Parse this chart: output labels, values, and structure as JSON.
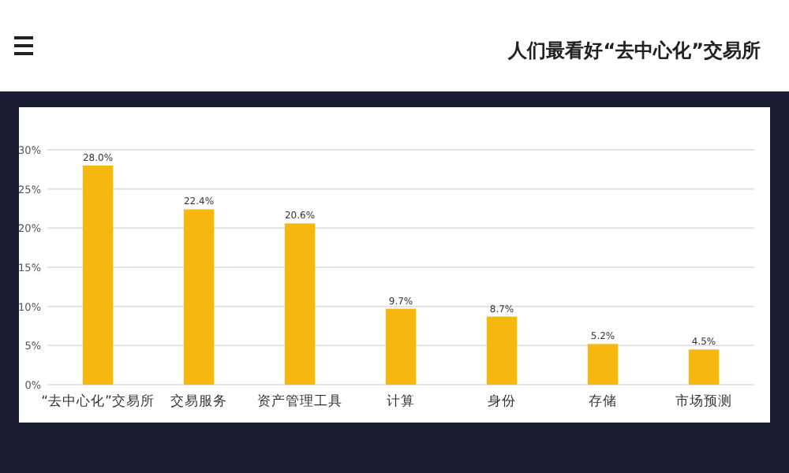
{
  "chart_data": {
    "type": "bar",
    "title": "人们最看好“去中心化”交易所",
    "categories": [
      "“去中心化”交易所",
      "交易服务",
      "资产管理工具",
      "计算",
      "身份",
      "存储",
      "市场预测"
    ],
    "values": [
      28.0,
      22.4,
      20.6,
      9.7,
      8.7,
      5.2,
      4.5
    ],
    "value_labels": [
      "28.0%",
      "22.4%",
      "20.6%",
      "9.7%",
      "8.7%",
      "5.2%",
      "4.5%"
    ],
    "color": "#f6b80f",
    "ylim": [
      0,
      30
    ],
    "yticks": [
      {
        "value": 0,
        "label": "0%"
      },
      {
        "value": 5,
        "label": "5%"
      },
      {
        "value": 10,
        "label": "10%"
      },
      {
        "value": 15,
        "label": "15%"
      },
      {
        "value": 20,
        "label": "20%"
      },
      {
        "value": 25,
        "label": "25%"
      },
      {
        "value": 30,
        "label": "30%"
      }
    ],
    "grid": "y"
  }
}
